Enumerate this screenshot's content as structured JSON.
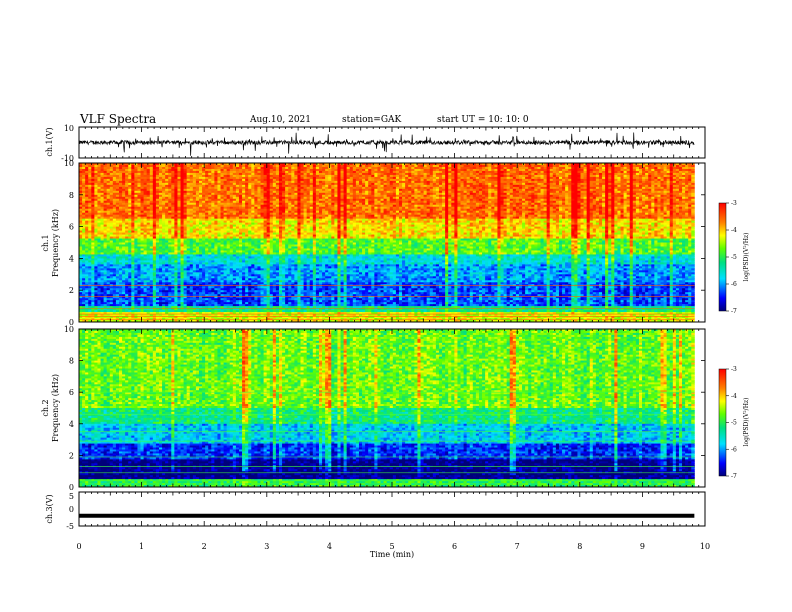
{
  "header": {
    "title": "VLF Spectra",
    "date": "Aug.10, 2021",
    "station": "station=GAK",
    "start_ut": "start  UT =   10: 10: 0"
  },
  "chart_data": [
    {
      "type": "line",
      "id": "ch1-waveform",
      "ylabel": "ch.1(V)",
      "ylim": [
        -10,
        10
      ],
      "y_ticks": [
        "10",
        "-10"
      ],
      "xlim": [
        0,
        10
      ],
      "color": "#000000"
    },
    {
      "type": "heatmap",
      "id": "ch1-spectrogram",
      "ylabel": "ch.1\nFrequency  (kHz)",
      "ylabel_lines": [
        "ch.1",
        "Frequency  (kHz)"
      ],
      "ylim": [
        0,
        10
      ],
      "y_ticks": [
        "0",
        "2",
        "4",
        "6",
        "8",
        "10"
      ],
      "xlim": [
        0,
        9.83
      ],
      "bands": [
        {
          "from": 0,
          "to": 0.6,
          "level": -4.3
        },
        {
          "from": 0.6,
          "to": 1.0,
          "level": -5.2
        },
        {
          "from": 1.0,
          "to": 2.5,
          "level": -6.3
        },
        {
          "from": 2.5,
          "to": 3.6,
          "level": -6.0
        },
        {
          "from": 3.6,
          "to": 4.3,
          "level": -5.6
        },
        {
          "from": 4.3,
          "to": 5.2,
          "level": -4.8
        },
        {
          "from": 5.2,
          "to": 6.5,
          "level": -4.1
        },
        {
          "from": 6.5,
          "to": 10,
          "level": -3.6
        }
      ],
      "colorbar": {
        "label": "log(PSD)(V²/Hz)",
        "range": [
          -7,
          -3
        ],
        "ticks": [
          "-3",
          "-4",
          "-5",
          "-6",
          "-7"
        ]
      }
    },
    {
      "type": "heatmap",
      "id": "ch2-spectrogram",
      "ylabel": "ch.2\nFrequency  (kHz)",
      "ylabel_lines": [
        "ch.2",
        "Frequency  (kHz)"
      ],
      "ylim": [
        0,
        10
      ],
      "y_ticks": [
        "0",
        "2",
        "4",
        "6",
        "8",
        "10"
      ],
      "xlim": [
        0,
        9.83
      ],
      "bands": [
        {
          "from": 0,
          "to": 0.5,
          "level": -5.0
        },
        {
          "from": 0.5,
          "to": 1.7,
          "level": -7.0
        },
        {
          "from": 1.7,
          "to": 2.8,
          "level": -6.4
        },
        {
          "from": 2.8,
          "to": 4.0,
          "level": -5.8
        },
        {
          "from": 4.0,
          "to": 5.0,
          "level": -5.2
        },
        {
          "from": 5.0,
          "to": 10,
          "level": -4.7
        }
      ],
      "colorbar": {
        "label": "log(PSD)(V²/Hz)",
        "range": [
          -7,
          -3
        ],
        "ticks": [
          "-3",
          "-4",
          "-5",
          "-6",
          "-7"
        ]
      }
    },
    {
      "type": "line",
      "id": "ch3-waveform",
      "ylabel": "ch.3(V)",
      "ylim": [
        -5,
        5
      ],
      "y_ticks": [
        "5",
        "0",
        "-5"
      ],
      "level": -2,
      "xlim": [
        0,
        10
      ],
      "color": "#000000"
    }
  ],
  "x_axis": {
    "label": "Time  (min)",
    "range": [
      0,
      10
    ],
    "ticks": [
      "0",
      "1",
      "2",
      "3",
      "4",
      "5",
      "6",
      "7",
      "8",
      "9",
      "10"
    ]
  }
}
